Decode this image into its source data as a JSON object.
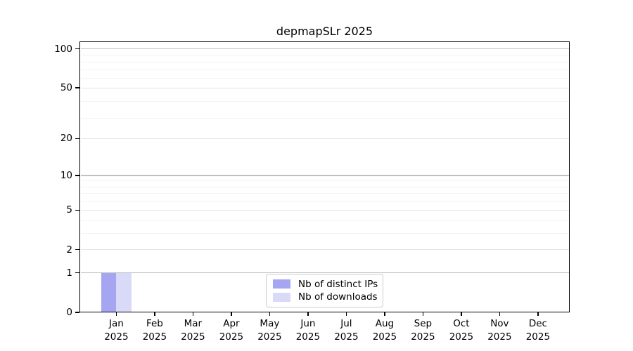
{
  "chart_data": {
    "type": "bar",
    "title": "depmapSLr 2025",
    "categories": [
      "Jan",
      "Feb",
      "Mar",
      "Apr",
      "May",
      "Jun",
      "Jul",
      "Aug",
      "Sep",
      "Oct",
      "Nov",
      "Dec"
    ],
    "year_label": "2025",
    "series": [
      {
        "name": "Nb of distinct IPs",
        "color": "#a5a5f2",
        "values": [
          1,
          0,
          0,
          0,
          0,
          0,
          0,
          0,
          0,
          0,
          0,
          0
        ]
      },
      {
        "name": "Nb of downloads",
        "color": "#d9daf8",
        "values": [
          1,
          0,
          0,
          0,
          0,
          0,
          0,
          0,
          0,
          0,
          0,
          0
        ]
      }
    ],
    "yscale": "log10(1+y)",
    "ytick_values": [
      0,
      1,
      2,
      5,
      10,
      20,
      50,
      100
    ],
    "ytick_labels": [
      "0",
      "1",
      "2",
      "5",
      "10",
      "20",
      "50",
      "100"
    ],
    "decade_tick_values": [
      1,
      10,
      100
    ],
    "minor_gridline_values": [
      3,
      4,
      6,
      7,
      8,
      9,
      29,
      39,
      59,
      69,
      79,
      89
    ],
    "ylim": [
      0,
      114
    ],
    "grid": true,
    "legend_position": "lower center"
  },
  "colors": {
    "background": "#ffffff",
    "text": "#000000",
    "spine": "#000000",
    "decade_gridline": "#c0c0c0",
    "major_gridline": "#e4e4e4",
    "minor_gridline": "#f3f3f3",
    "legend_border": "#cccccc"
  }
}
